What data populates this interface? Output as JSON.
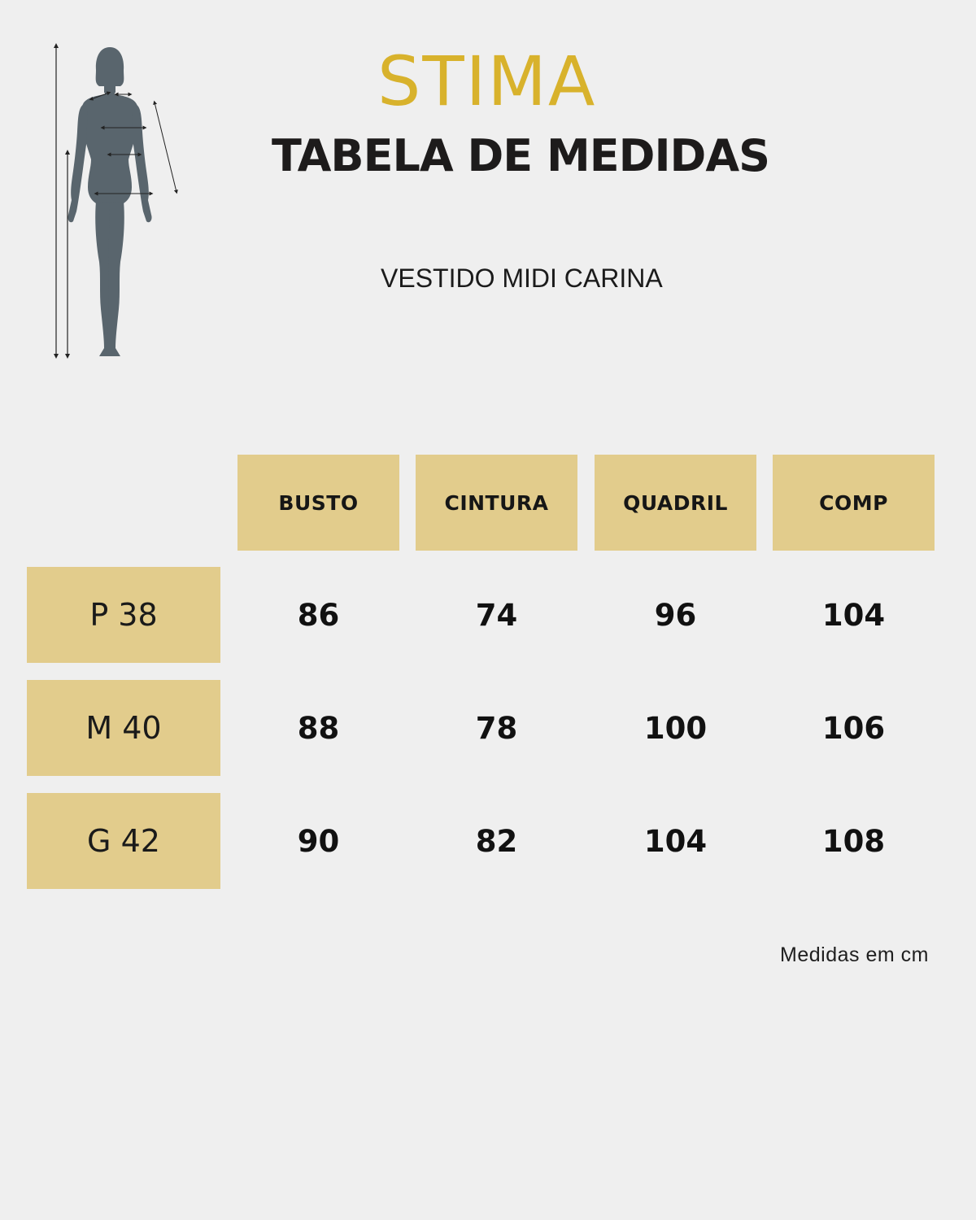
{
  "brand": {
    "name": "STIMA",
    "color": "#d8b22c"
  },
  "title": "TABELA DE MEDIDAS",
  "product": "VESTIDO MIDI CARINA",
  "table": {
    "headers": [
      "BUSTO",
      "CINTURA",
      "QUADRIL",
      "COMP"
    ],
    "rows": [
      {
        "size": "P 38",
        "values": [
          "86",
          "74",
          "96",
          "104"
        ]
      },
      {
        "size": "M 40",
        "values": [
          "88",
          "78",
          "100",
          "106"
        ]
      },
      {
        "size": "G 42",
        "values": [
          "90",
          "82",
          "104",
          "108"
        ]
      }
    ],
    "cell_color": "#e2cc8c"
  },
  "note": "Medidas em cm",
  "figure": {
    "icon": "female-body-measurement-icon",
    "color": "#59656d"
  }
}
